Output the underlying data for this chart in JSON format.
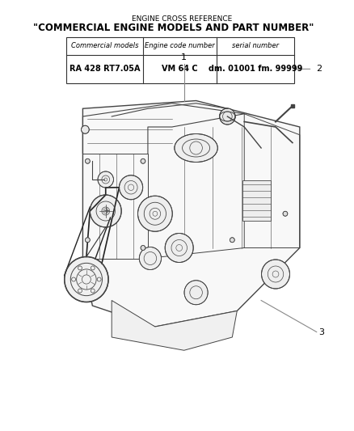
{
  "bg_color": "#ffffff",
  "title_line1": "ENGINE CROSS REFERENCE",
  "title_line2": "\"COMMERCIAL ENGINE MODELS AND PART NUMBER\"",
  "table_headers": [
    "Commercial models",
    "Engine code number",
    "serial number"
  ],
  "table_row": [
    "RA 428 RT7.05A",
    "VM 64 C",
    "dm. 01001 fm. 99999"
  ],
  "callout_1_label": "1",
  "callout_2_label": "2",
  "callout_3_label": "3",
  "title_fontsize": 6.5,
  "title_bold_fontsize": 8.5,
  "table_header_fontsize": 6.0,
  "table_data_fontsize": 7.0,
  "table_border_color": "#555555",
  "text_color": "#000000",
  "engine_line_color": "#444444",
  "callout_line_color": "#888888"
}
